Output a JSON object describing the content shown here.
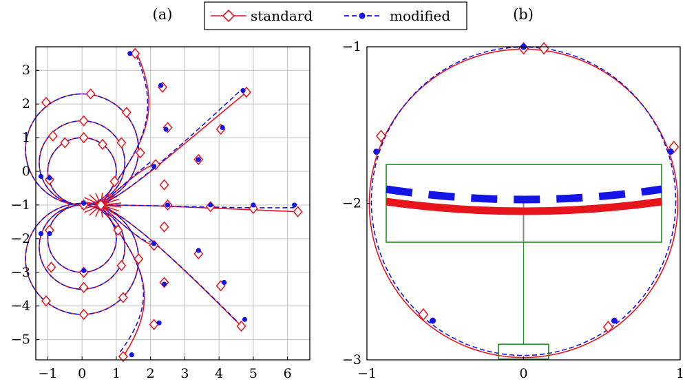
{
  "figure": {
    "caption_a": "(a)",
    "caption_b": "(b)",
    "legend": [
      {
        "label": "standard",
        "color": "#e8141b",
        "marker": "diamond-open",
        "line": "solid"
      },
      {
        "label": "modified",
        "color": "#1414e6",
        "marker": "circle-filled",
        "line": "dashed"
      }
    ]
  },
  "chart_data": [
    {
      "panel": "(a)",
      "type": "line",
      "title": "",
      "xlabel": "",
      "ylabel": "",
      "xlim": [
        -1.35,
        6.65
      ],
      "ylim": [
        -5.6,
        3.7
      ],
      "xticks": [
        "−1",
        "0",
        "1",
        "2",
        "3",
        "4",
        "5",
        "6"
      ],
      "xtick_values": [
        -1,
        0,
        1,
        2,
        3,
        4,
        5,
        6
      ],
      "yticks": [
        "3",
        "2",
        "1",
        "0",
        "−1",
        "−2",
        "−3",
        "−4",
        "−5"
      ],
      "ytick_values": [
        3,
        2,
        1,
        0,
        -1,
        -2,
        -3,
        -4,
        -5
      ],
      "grid": true,
      "curve_family": {
        "description": "trajectories emanating from (0.55,-1)",
        "loops_upper": [
          {
            "center": [
              0,
              0
            ],
            "radius": 1.0
          },
          {
            "center": [
              0,
              0.25
            ],
            "radius": 1.25
          },
          {
            "center": [
              0,
              0.65
            ],
            "radius": 1.65
          }
        ],
        "loops_lower": [
          {
            "center": [
              0,
              -2.0
            ],
            "radius": 1.0
          },
          {
            "center": [
              0,
              -2.25
            ],
            "radius": 1.25
          },
          {
            "center": [
              0,
              -2.6
            ],
            "radius": 1.65
          }
        ]
      },
      "series": [
        {
          "name": "standard",
          "color": "#e8141b",
          "markers": [
            [
              0.55,
              -1
            ],
            [
              0.05,
              -1
            ],
            [
              -0.95,
              -0.25
            ],
            [
              -0.95,
              -1.75
            ],
            [
              0.05,
              -3.0
            ],
            [
              1.05,
              -1.75
            ],
            [
              0.95,
              -0.3
            ],
            [
              -0.5,
              0.85
            ],
            [
              0.05,
              1.0
            ],
            [
              0.6,
              0.8
            ],
            [
              -0.85,
              1.05
            ],
            [
              0.05,
              1.5
            ],
            [
              1.15,
              0.85
            ],
            [
              -0.9,
              -2.85
            ],
            [
              0.05,
              -3.45
            ],
            [
              1.15,
              -2.8
            ],
            [
              -1.05,
              2.05
            ],
            [
              0.25,
              2.3
            ],
            [
              1.3,
              1.75
            ],
            [
              1.7,
              0.55
            ],
            [
              -1.05,
              -3.85
            ],
            [
              0.05,
              -4.25
            ],
            [
              1.2,
              -3.75
            ],
            [
              1.65,
              -2.6
            ],
            [
              1.55,
              3.5
            ],
            [
              2.35,
              2.5
            ],
            [
              2.5,
              1.3
            ],
            [
              2.15,
              0.2
            ],
            [
              1.2,
              -5.5
            ],
            [
              2.1,
              -4.55
            ],
            [
              2.4,
              -3.3
            ],
            [
              2.1,
              -2.2
            ],
            [
              4.8,
              2.35
            ],
            [
              4.05,
              1.25
            ],
            [
              3.4,
              0.35
            ],
            [
              2.4,
              -0.4
            ],
            [
              4.65,
              -4.6
            ],
            [
              4.05,
              -3.4
            ],
            [
              3.4,
              -2.45
            ],
            [
              2.4,
              -1.65
            ],
            [
              6.3,
              -1.2
            ],
            [
              5.0,
              -1.1
            ],
            [
              3.75,
              -1.05
            ],
            [
              2.5,
              -1.0
            ]
          ]
        },
        {
          "name": "modified",
          "color": "#1414e6",
          "markers": [
            [
              -0.95,
              -0.2
            ],
            [
              0.05,
              -0.95
            ],
            [
              -1.2,
              -0.15
            ],
            [
              -0.95,
              -1.85
            ],
            [
              -1.2,
              -1.85
            ],
            [
              0.05,
              -2.95
            ],
            [
              1.4,
              3.5
            ],
            [
              2.3,
              2.55
            ],
            [
              2.45,
              1.25
            ],
            [
              2.1,
              0.15
            ],
            [
              4.7,
              2.4
            ],
            [
              4.1,
              1.3
            ],
            [
              3.4,
              0.35
            ],
            [
              1.45,
              -5.45
            ],
            [
              2.25,
              -4.5
            ],
            [
              2.4,
              -3.35
            ],
            [
              2.1,
              -2.15
            ],
            [
              4.75,
              -4.4
            ],
            [
              4.15,
              -3.3
            ],
            [
              3.4,
              -2.35
            ],
            [
              6.2,
              -1.0
            ],
            [
              5.0,
              -1.0
            ],
            [
              3.75,
              -1.0
            ],
            [
              2.5,
              -1.0
            ]
          ]
        }
      ]
    },
    {
      "panel": "(b)",
      "type": "line",
      "title": "",
      "xlabel": "",
      "ylabel": "",
      "xlim": [
        -1,
        1
      ],
      "ylim": [
        -3,
        -1
      ],
      "xticks": [
        "−1",
        "0",
        "1"
      ],
      "xtick_values": [
        -1,
        0,
        1
      ],
      "yticks": [
        "−1",
        "−2",
        "−3"
      ],
      "ytick_values": [
        -1,
        -2,
        -3
      ],
      "grid": false,
      "circle": {
        "center": [
          0,
          -2
        ],
        "radius": 0.985
      },
      "series": [
        {
          "name": "standard",
          "color": "#e8141b",
          "markers": [
            [
              0,
              -1.01
            ],
            [
              0.13,
              -1.01
            ],
            [
              -0.91,
              -1.57
            ],
            [
              0.96,
              -1.64
            ],
            [
              -0.64,
              -2.71
            ],
            [
              0.54,
              -2.79
            ]
          ]
        },
        {
          "name": "modified",
          "color": "#1414e6",
          "markers": [
            [
              0,
              -1.0
            ],
            [
              -0.94,
              -1.67
            ],
            [
              0.94,
              -1.67
            ],
            [
              -0.58,
              -2.75
            ],
            [
              0.58,
              -2.75
            ]
          ]
        }
      ],
      "inset": {
        "zoom_region_x": [
          -0.16,
          0.16
        ],
        "zoom_region_y": [
          -2.995,
          -2.9
        ],
        "frame_color": "#1e8c1e"
      }
    }
  ]
}
